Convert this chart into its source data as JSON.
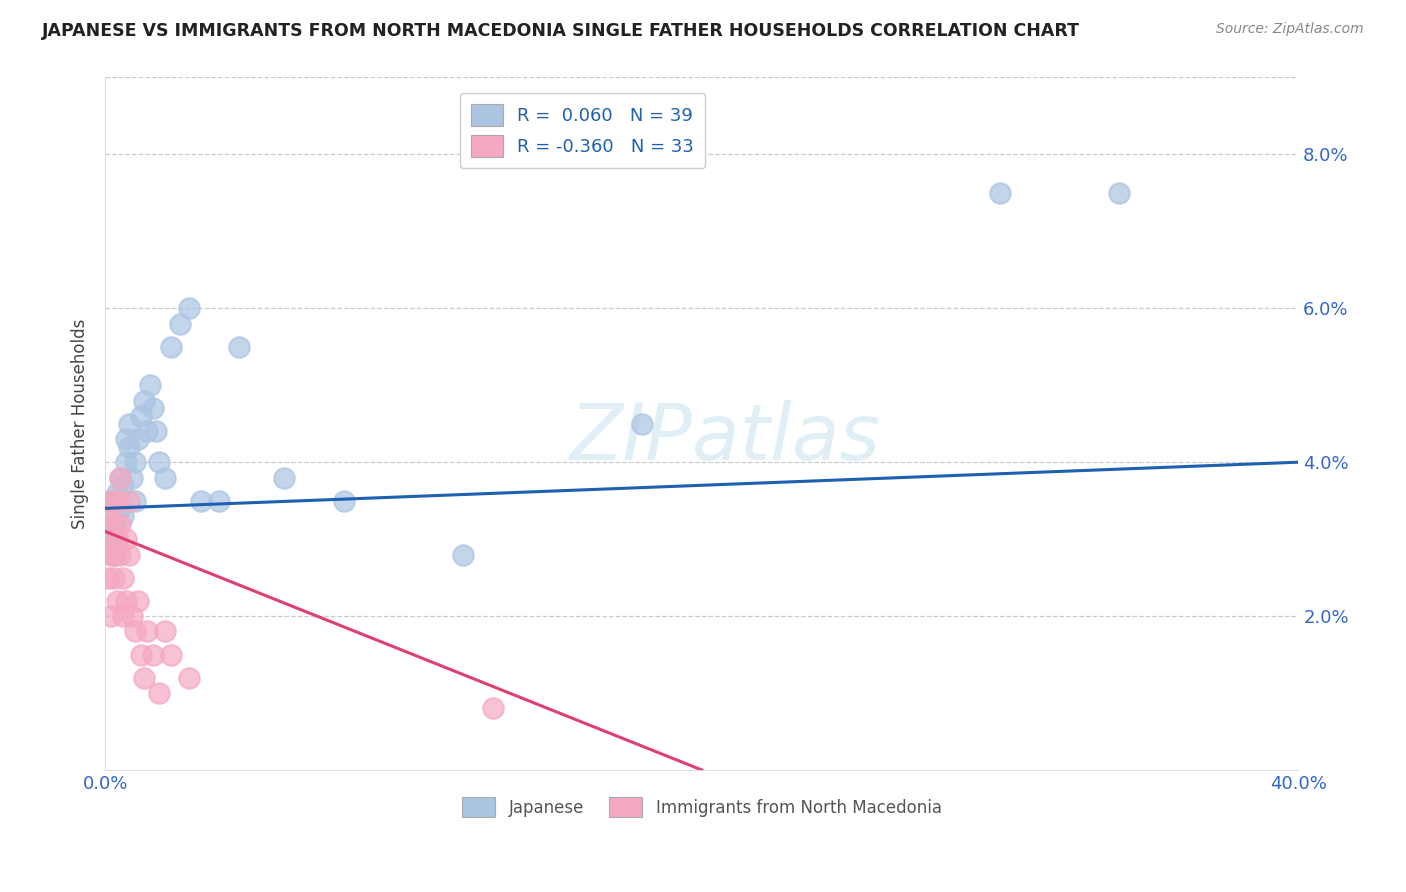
{
  "title": "JAPANESE VS IMMIGRANTS FROM NORTH MACEDONIA SINGLE FATHER HOUSEHOLDS CORRELATION CHART",
  "source": "Source: ZipAtlas.com",
  "ylabel": "Single Father Households",
  "watermark": "ZIPatlas",
  "xlim": [
    0.0,
    0.4
  ],
  "ylim": [
    0.0,
    0.09
  ],
  "xticks": [
    0.0,
    0.1,
    0.2,
    0.3,
    0.4
  ],
  "xtick_labels": [
    "0.0%",
    "",
    "",
    "",
    "40.0%"
  ],
  "yticks_right": [
    0.02,
    0.04,
    0.06,
    0.08
  ],
  "ytick_labels_right": [
    "2.0%",
    "4.0%",
    "6.0%",
    "8.0%"
  ],
  "japanese_R": 0.06,
  "japanese_N": 39,
  "macedonia_R": -0.36,
  "macedonia_N": 33,
  "japanese_color": "#aac4e2",
  "macedonia_color": "#f5a8c0",
  "japanese_line_color": "#2060b0",
  "macedonia_line_color": "#e04070",
  "japanese_x": [
    0.001,
    0.002,
    0.002,
    0.003,
    0.003,
    0.004,
    0.004,
    0.005,
    0.005,
    0.006,
    0.006,
    0.007,
    0.007,
    0.008,
    0.008,
    0.009,
    0.01,
    0.01,
    0.011,
    0.012,
    0.013,
    0.014,
    0.015,
    0.016,
    0.017,
    0.018,
    0.02,
    0.022,
    0.025,
    0.028,
    0.032,
    0.038,
    0.045,
    0.06,
    0.08,
    0.12,
    0.18,
    0.3,
    0.34
  ],
  "japanese_y": [
    0.033,
    0.035,
    0.03,
    0.028,
    0.032,
    0.03,
    0.036,
    0.034,
    0.038,
    0.033,
    0.037,
    0.04,
    0.043,
    0.042,
    0.045,
    0.038,
    0.035,
    0.04,
    0.043,
    0.046,
    0.048,
    0.044,
    0.05,
    0.047,
    0.044,
    0.04,
    0.038,
    0.055,
    0.058,
    0.06,
    0.035,
    0.035,
    0.055,
    0.038,
    0.035,
    0.028,
    0.045,
    0.075,
    0.075
  ],
  "macedonia_x": [
    0.001,
    0.001,
    0.001,
    0.002,
    0.002,
    0.002,
    0.003,
    0.003,
    0.003,
    0.004,
    0.004,
    0.004,
    0.005,
    0.005,
    0.005,
    0.006,
    0.006,
    0.007,
    0.007,
    0.008,
    0.008,
    0.009,
    0.01,
    0.011,
    0.012,
    0.013,
    0.014,
    0.016,
    0.018,
    0.02,
    0.022,
    0.028,
    0.13
  ],
  "macedonia_y": [
    0.03,
    0.025,
    0.033,
    0.028,
    0.02,
    0.035,
    0.032,
    0.025,
    0.028,
    0.03,
    0.022,
    0.035,
    0.038,
    0.028,
    0.032,
    0.02,
    0.025,
    0.03,
    0.022,
    0.028,
    0.035,
    0.02,
    0.018,
    0.022,
    0.015,
    0.012,
    0.018,
    0.015,
    0.01,
    0.018,
    0.015,
    0.012,
    0.008
  ],
  "j_line_x0": 0.0,
  "j_line_y0": 0.034,
  "j_line_x1": 0.4,
  "j_line_y1": 0.04,
  "m_line_x0": 0.0,
  "m_line_y0": 0.031,
  "m_line_x1": 0.2,
  "m_line_y1": 0.0
}
